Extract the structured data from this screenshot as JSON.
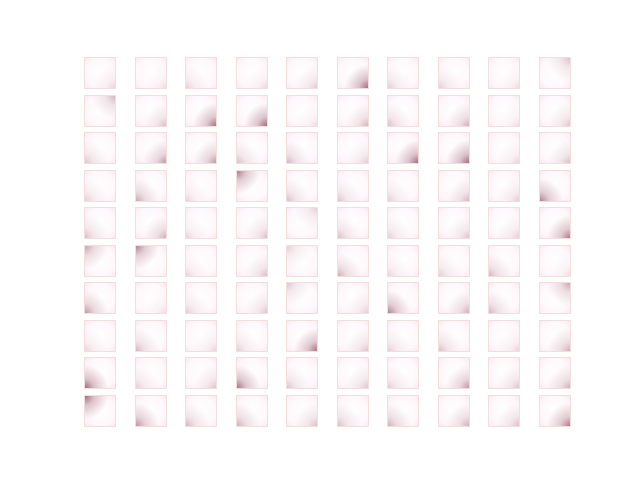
{
  "figure": {
    "rows": 10,
    "cols": 10,
    "background_color": "#ffffff",
    "tile_base_color": "#fff7fb",
    "tile_border_color": "#f3dede",
    "shadow_color": "#8a4a5c"
  },
  "tiles": [
    {
      "corner": "br",
      "intensity": 0.15
    },
    {
      "corner": "br",
      "intensity": 0.1
    },
    {
      "corner": "bl",
      "intensity": 0.18
    },
    {
      "corner": "br",
      "intensity": 0.12
    },
    {
      "corner": "br",
      "intensity": 0.22
    },
    {
      "corner": "br",
      "intensity": 0.85
    },
    {
      "corner": "bl",
      "intensity": 0.2
    },
    {
      "corner": "bl",
      "intensity": 0.2
    },
    {
      "corner": "br",
      "intensity": 0.1
    },
    {
      "corner": "tr",
      "intensity": 0.3
    },
    {
      "corner": "tr",
      "intensity": 0.35
    },
    {
      "corner": "br",
      "intensity": 0.3
    },
    {
      "corner": "br",
      "intensity": 0.8
    },
    {
      "corner": "br",
      "intensity": 0.85
    },
    {
      "corner": "br",
      "intensity": 0.1
    },
    {
      "corner": "br",
      "intensity": 0.35
    },
    {
      "corner": "bl",
      "intensity": 0.3
    },
    {
      "corner": "br",
      "intensity": 0.4
    },
    {
      "corner": "br",
      "intensity": 0.1
    },
    {
      "corner": "br",
      "intensity": 0.25
    },
    {
      "corner": "bl",
      "intensity": 0.25
    },
    {
      "corner": "br",
      "intensity": 0.55
    },
    {
      "corner": "br",
      "intensity": 0.55
    },
    {
      "corner": "bl",
      "intensity": 0.3
    },
    {
      "corner": "bl",
      "intensity": 0.35
    },
    {
      "corner": "br",
      "intensity": 0.2
    },
    {
      "corner": "br",
      "intensity": 0.85
    },
    {
      "corner": "br",
      "intensity": 0.85
    },
    {
      "corner": "br",
      "intensity": 0.15
    },
    {
      "corner": "br",
      "intensity": 0.3
    },
    {
      "corner": "bl",
      "intensity": 0.2
    },
    {
      "corner": "bl",
      "intensity": 0.45
    },
    {
      "corner": "bl",
      "intensity": 0.15
    },
    {
      "corner": "tl",
      "intensity": 0.75
    },
    {
      "corner": "bl",
      "intensity": 0.3
    },
    {
      "corner": "bl",
      "intensity": 0.25
    },
    {
      "corner": "bl",
      "intensity": 0.2
    },
    {
      "corner": "br",
      "intensity": 0.35
    },
    {
      "corner": "br",
      "intensity": 0.2
    },
    {
      "corner": "bl",
      "intensity": 0.7
    },
    {
      "corner": "bl",
      "intensity": 0.3
    },
    {
      "corner": "br",
      "intensity": 0.4
    },
    {
      "corner": "bl",
      "intensity": 0.15
    },
    {
      "corner": "br",
      "intensity": 0.3
    },
    {
      "corner": "tr",
      "intensity": 0.2
    },
    {
      "corner": "bl",
      "intensity": 0.3
    },
    {
      "corner": "bl",
      "intensity": 0.2
    },
    {
      "corner": "br",
      "intensity": 0.25
    },
    {
      "corner": "br",
      "intensity": 0.2
    },
    {
      "corner": "br",
      "intensity": 0.75
    },
    {
      "corner": "tl",
      "intensity": 0.5
    },
    {
      "corner": "tl",
      "intensity": 0.7
    },
    {
      "corner": "bl",
      "intensity": 0.15
    },
    {
      "corner": "br",
      "intensity": 0.3
    },
    {
      "corner": "tl",
      "intensity": 0.2
    },
    {
      "corner": "bl",
      "intensity": 0.4
    },
    {
      "corner": "bl",
      "intensity": 0.15
    },
    {
      "corner": "bl",
      "intensity": 0.2
    },
    {
      "corner": "bl",
      "intensity": 0.35
    },
    {
      "corner": "br",
      "intensity": 0.1
    },
    {
      "corner": "bl",
      "intensity": 0.55
    },
    {
      "corner": "br",
      "intensity": 0.1
    },
    {
      "corner": "bl",
      "intensity": 0.2
    },
    {
      "corner": "br",
      "intensity": 0.25
    },
    {
      "corner": "tl",
      "intensity": 0.25
    },
    {
      "corner": "br",
      "intensity": 0.2
    },
    {
      "corner": "bl",
      "intensity": 0.7
    },
    {
      "corner": "br",
      "intensity": 0.4
    },
    {
      "corner": "bl",
      "intensity": 0.35
    },
    {
      "corner": "tr",
      "intensity": 0.45
    },
    {
      "corner": "bl",
      "intensity": 0.15
    },
    {
      "corner": "bl",
      "intensity": 0.35
    },
    {
      "corner": "br",
      "intensity": 0.15
    },
    {
      "corner": "bl",
      "intensity": 0.2
    },
    {
      "corner": "br",
      "intensity": 0.8
    },
    {
      "corner": "br",
      "intensity": 0.25
    },
    {
      "corner": "bl",
      "intensity": 0.2
    },
    {
      "corner": "bl",
      "intensity": 0.3
    },
    {
      "corner": "br",
      "intensity": 0.15
    },
    {
      "corner": "br",
      "intensity": 0.4
    },
    {
      "corner": "bl",
      "intensity": 0.85
    },
    {
      "corner": "bl",
      "intensity": 0.2
    },
    {
      "corner": "br",
      "intensity": 0.25
    },
    {
      "corner": "bl",
      "intensity": 0.8
    },
    {
      "corner": "bl",
      "intensity": 0.25
    },
    {
      "corner": "br",
      "intensity": 0.25
    },
    {
      "corner": "bl",
      "intensity": 0.2
    },
    {
      "corner": "br",
      "intensity": 0.55
    },
    {
      "corner": "br",
      "intensity": 0.25
    },
    {
      "corner": "br",
      "intensity": 0.4
    },
    {
      "corner": "tl",
      "intensity": 0.85
    },
    {
      "corner": "bl",
      "intensity": 0.6
    },
    {
      "corner": "bl",
      "intensity": 0.35
    },
    {
      "corner": "bl",
      "intensity": 0.4
    },
    {
      "corner": "br",
      "intensity": 0.3
    },
    {
      "corner": "bl",
      "intensity": 0.3
    },
    {
      "corner": "bl",
      "intensity": 0.4
    },
    {
      "corner": "br",
      "intensity": 0.4
    },
    {
      "corner": "br",
      "intensity": 0.3
    },
    {
      "corner": "br",
      "intensity": 0.75
    }
  ]
}
